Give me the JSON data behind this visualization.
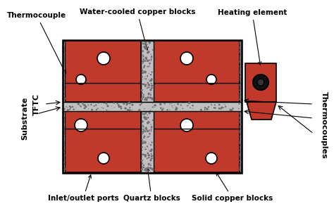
{
  "fig_width": 4.74,
  "fig_height": 3.0,
  "dpi": 100,
  "bg_color": "#ffffff",
  "red_color": "#c0392b",
  "black": "#000000",
  "white": "#ffffff",
  "labels": {
    "thermocouple": "Thermocouple",
    "water_cooled": "Water-cooled copper blocks",
    "heating_element": "Heating element",
    "tftc": "TFTC",
    "substrate": "Substrate",
    "inlet_outlet": "Inlet/outlet ports",
    "quartz": "Quartz blocks",
    "solid_copper": "Solid copper blocks",
    "thermocouples": "Thermocouples"
  }
}
